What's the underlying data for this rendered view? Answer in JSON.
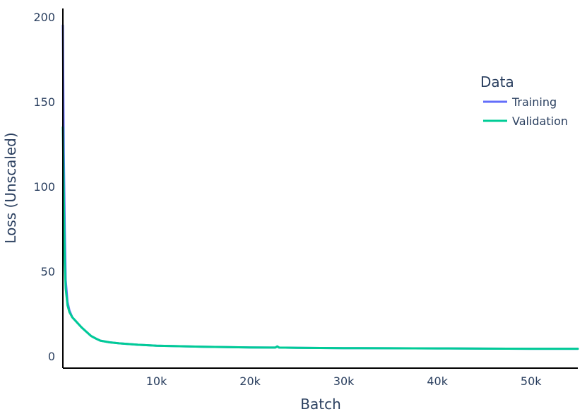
{
  "chart_data": {
    "type": "line",
    "title": "",
    "xlabel": "Batch",
    "ylabel": "Loss (Unscaled)",
    "xlim": [
      0,
      55000
    ],
    "ylim": [
      -7,
      205
    ],
    "x_ticks": [
      10000,
      20000,
      30000,
      40000,
      50000
    ],
    "x_tick_labels": [
      "10k",
      "20k",
      "30k",
      "40k",
      "50k"
    ],
    "y_ticks": [
      0,
      50,
      100,
      150,
      200
    ],
    "y_tick_labels": [
      "0",
      "50",
      "100",
      "150",
      "200"
    ],
    "grid": false,
    "legend": {
      "title": "Data",
      "position": "top-right"
    },
    "series": [
      {
        "name": "Training",
        "color": "#636efa",
        "x": [
          0,
          100,
          200,
          300,
          500,
          700,
          1000,
          1500,
          2000,
          2500,
          3000,
          3500,
          4000,
          5000,
          6000,
          8000,
          10000,
          15000,
          20000,
          22700,
          22900,
          23100,
          25000,
          30000,
          35000,
          40000,
          45000,
          50000,
          55000
        ],
        "y": [
          195,
          120,
          75,
          45,
          32,
          27,
          23,
          20,
          17,
          14.5,
          12,
          10.5,
          9.2,
          8.2,
          7.6,
          6.8,
          6.2,
          5.6,
          5.2,
          5.1,
          5.8,
          5.1,
          5.0,
          4.8,
          4.7,
          4.6,
          4.5,
          4.4,
          4.4
        ]
      },
      {
        "name": "Validation",
        "color": "#00cc96",
        "x": [
          0,
          100,
          200,
          300,
          500,
          700,
          1000,
          1500,
          2000,
          2500,
          3000,
          3500,
          4000,
          5000,
          6000,
          8000,
          10000,
          15000,
          20000,
          22700,
          22900,
          23100,
          25000,
          30000,
          35000,
          40000,
          45000,
          50000,
          55000
        ],
        "y": [
          135,
          95,
          55,
          40,
          30,
          26,
          23,
          20,
          17,
          14.5,
          12,
          10.5,
          9.2,
          8.2,
          7.6,
          6.8,
          6.2,
          5.6,
          5.2,
          5.1,
          5.8,
          5.1,
          5.0,
          4.8,
          4.7,
          4.6,
          4.5,
          4.4,
          4.4
        ]
      }
    ]
  }
}
